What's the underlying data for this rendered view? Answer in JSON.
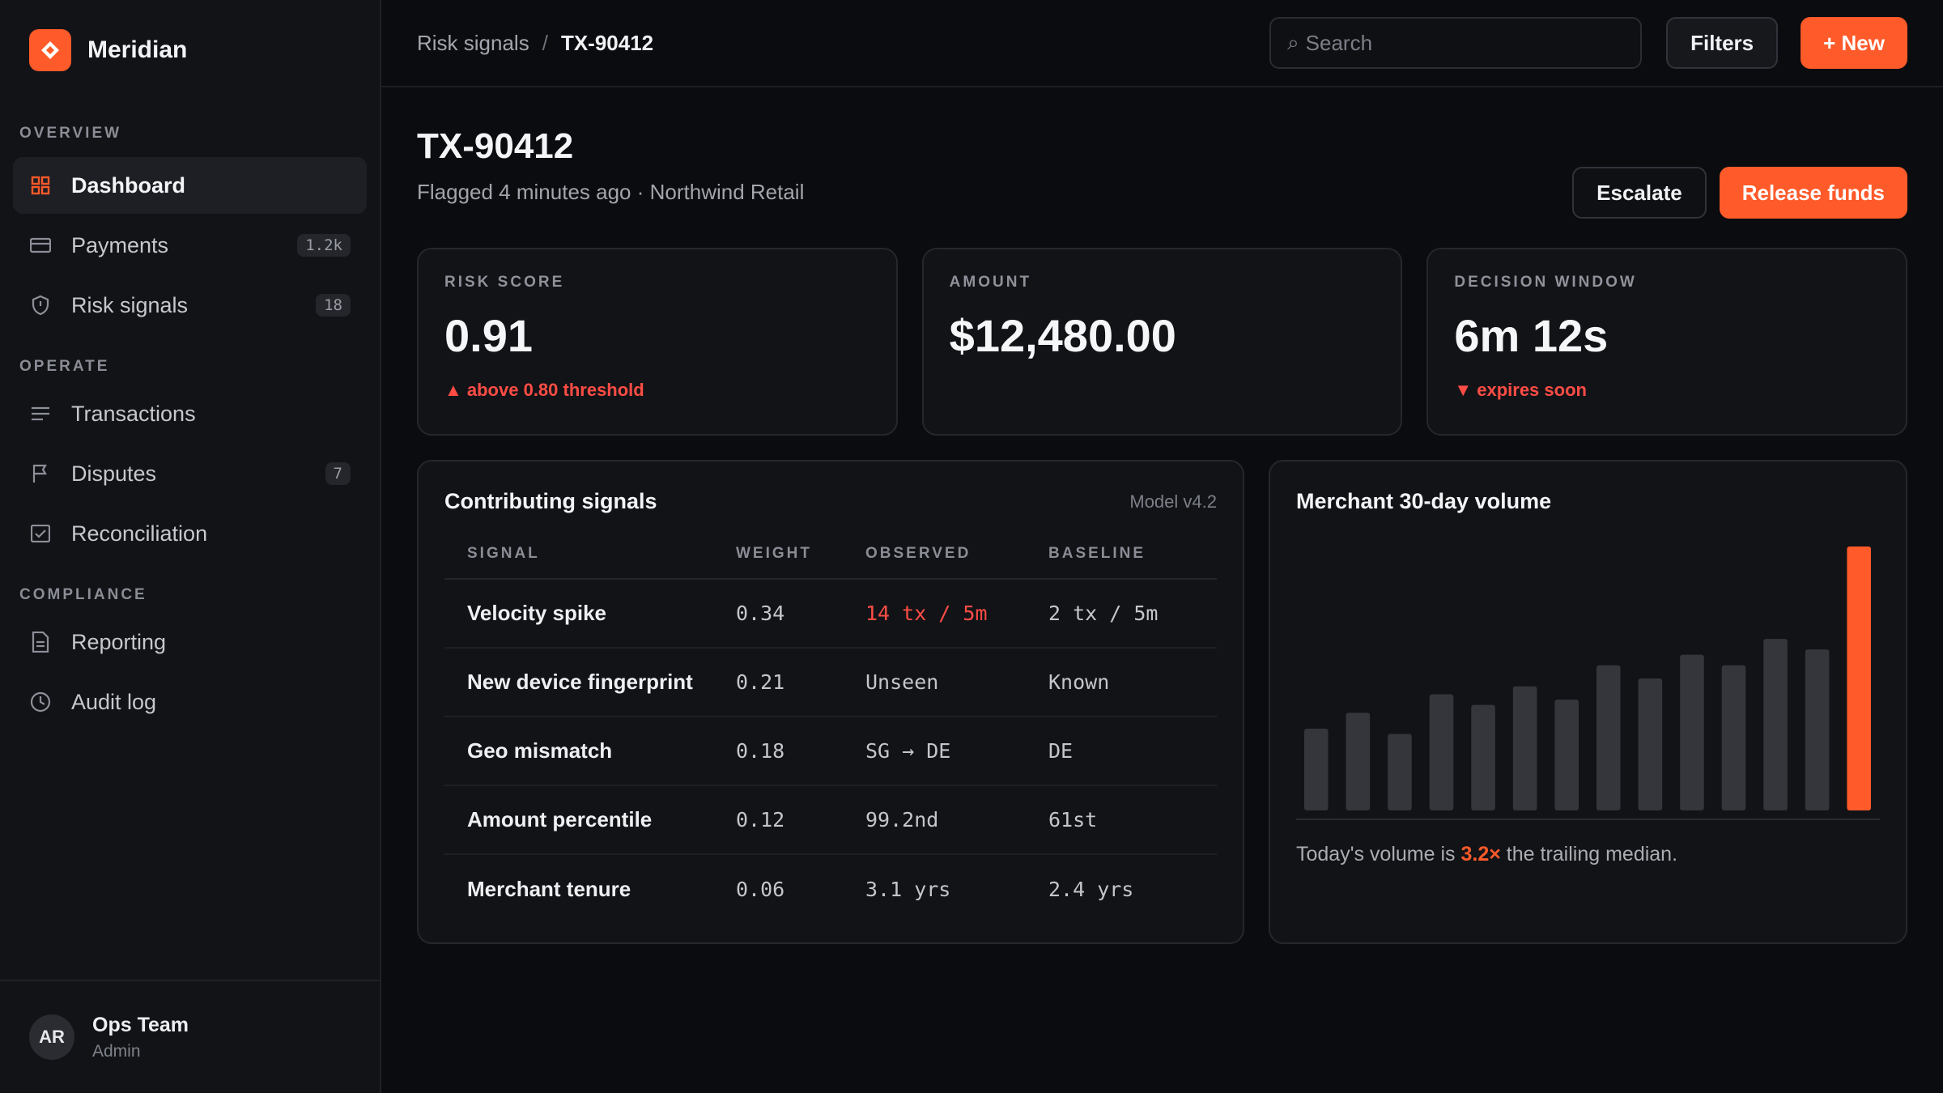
{
  "app": {
    "name": "Meridian",
    "logo_icon": "diamond-icon",
    "accent": "#ff5a2a"
  },
  "sidebar": {
    "sections": [
      {
        "label": "OVERVIEW"
      },
      {
        "label": "OPERATE"
      },
      {
        "label": "COMPLIANCE"
      }
    ],
    "items": [
      {
        "label": "Dashboard",
        "icon": "grid-icon",
        "active": true
      },
      {
        "label": "Payments",
        "icon": "card-icon",
        "badge": "1.2k"
      },
      {
        "label": "Risk signals",
        "icon": "shield-icon",
        "badge": "18"
      },
      {
        "label": "Transactions",
        "icon": "list-icon"
      },
      {
        "label": "Disputes",
        "icon": "flag-icon",
        "badge": "7"
      },
      {
        "label": "Reconciliation",
        "icon": "check-box-icon"
      },
      {
        "label": "Reporting",
        "icon": "document-icon"
      },
      {
        "label": "Audit log",
        "icon": "clock-icon"
      }
    ],
    "user": {
      "initials": "AR",
      "name": "Ops Team",
      "role": "Admin"
    }
  },
  "topbar": {
    "breadcrumb": {
      "parent": "Risk signals",
      "separator": "/",
      "current": "TX-90412"
    },
    "search_placeholder": "Search",
    "search_icon": "⌕",
    "filters_label": "Filters",
    "new_label": "+ New"
  },
  "page": {
    "title": "TX-90412",
    "subtitle": "Flagged 4 minutes ago · Northwind Retail",
    "escalate_label": "Escalate",
    "release_label": "Release funds"
  },
  "stats": [
    {
      "label": "RISK SCORE",
      "value": "0.91",
      "note": "▲ above 0.80 threshold"
    },
    {
      "label": "AMOUNT",
      "value": "$12,480.00",
      "note": ""
    },
    {
      "label": "DECISION WINDOW",
      "value": "6m 12s",
      "note": "▼ expires soon"
    }
  ],
  "signals": {
    "title": "Contributing signals",
    "model": "Model v4.2",
    "columns": [
      "SIGNAL",
      "WEIGHT",
      "OBSERVED",
      "BASELINE"
    ],
    "rows": [
      {
        "signal": "Velocity spike",
        "weight": "0.34",
        "observed": "14 tx / 5m",
        "baseline": "2 tx / 5m",
        "alert": true
      },
      {
        "signal": "New device fingerprint",
        "weight": "0.21",
        "observed": "Unseen",
        "baseline": "Known"
      },
      {
        "signal": "Geo mismatch",
        "weight": "0.18",
        "observed": "SG → DE",
        "baseline": "DE"
      },
      {
        "signal": "Amount percentile",
        "weight": "0.12",
        "observed": "99.2nd",
        "baseline": "61st"
      },
      {
        "signal": "Merchant tenure",
        "weight": "0.06",
        "observed": "3.1 yrs",
        "baseline": "2.4 yrs"
      }
    ]
  },
  "volume": {
    "title": "Merchant 30-day volume",
    "caption_pre": "Today's volume is",
    "caption_highlight": "3.2×",
    "caption_post": "the trailing median.",
    "chart_data": {
      "type": "bar",
      "values": [
        0.31,
        0.37,
        0.29,
        0.44,
        0.4,
        0.47,
        0.42,
        0.55,
        0.5,
        0.59,
        0.55,
        0.65,
        0.61,
        1.0
      ],
      "highlight_last": true,
      "bar_color": "#34363b",
      "highlight_color": "#ff5a2a",
      "ylim": [
        0,
        1
      ]
    }
  }
}
